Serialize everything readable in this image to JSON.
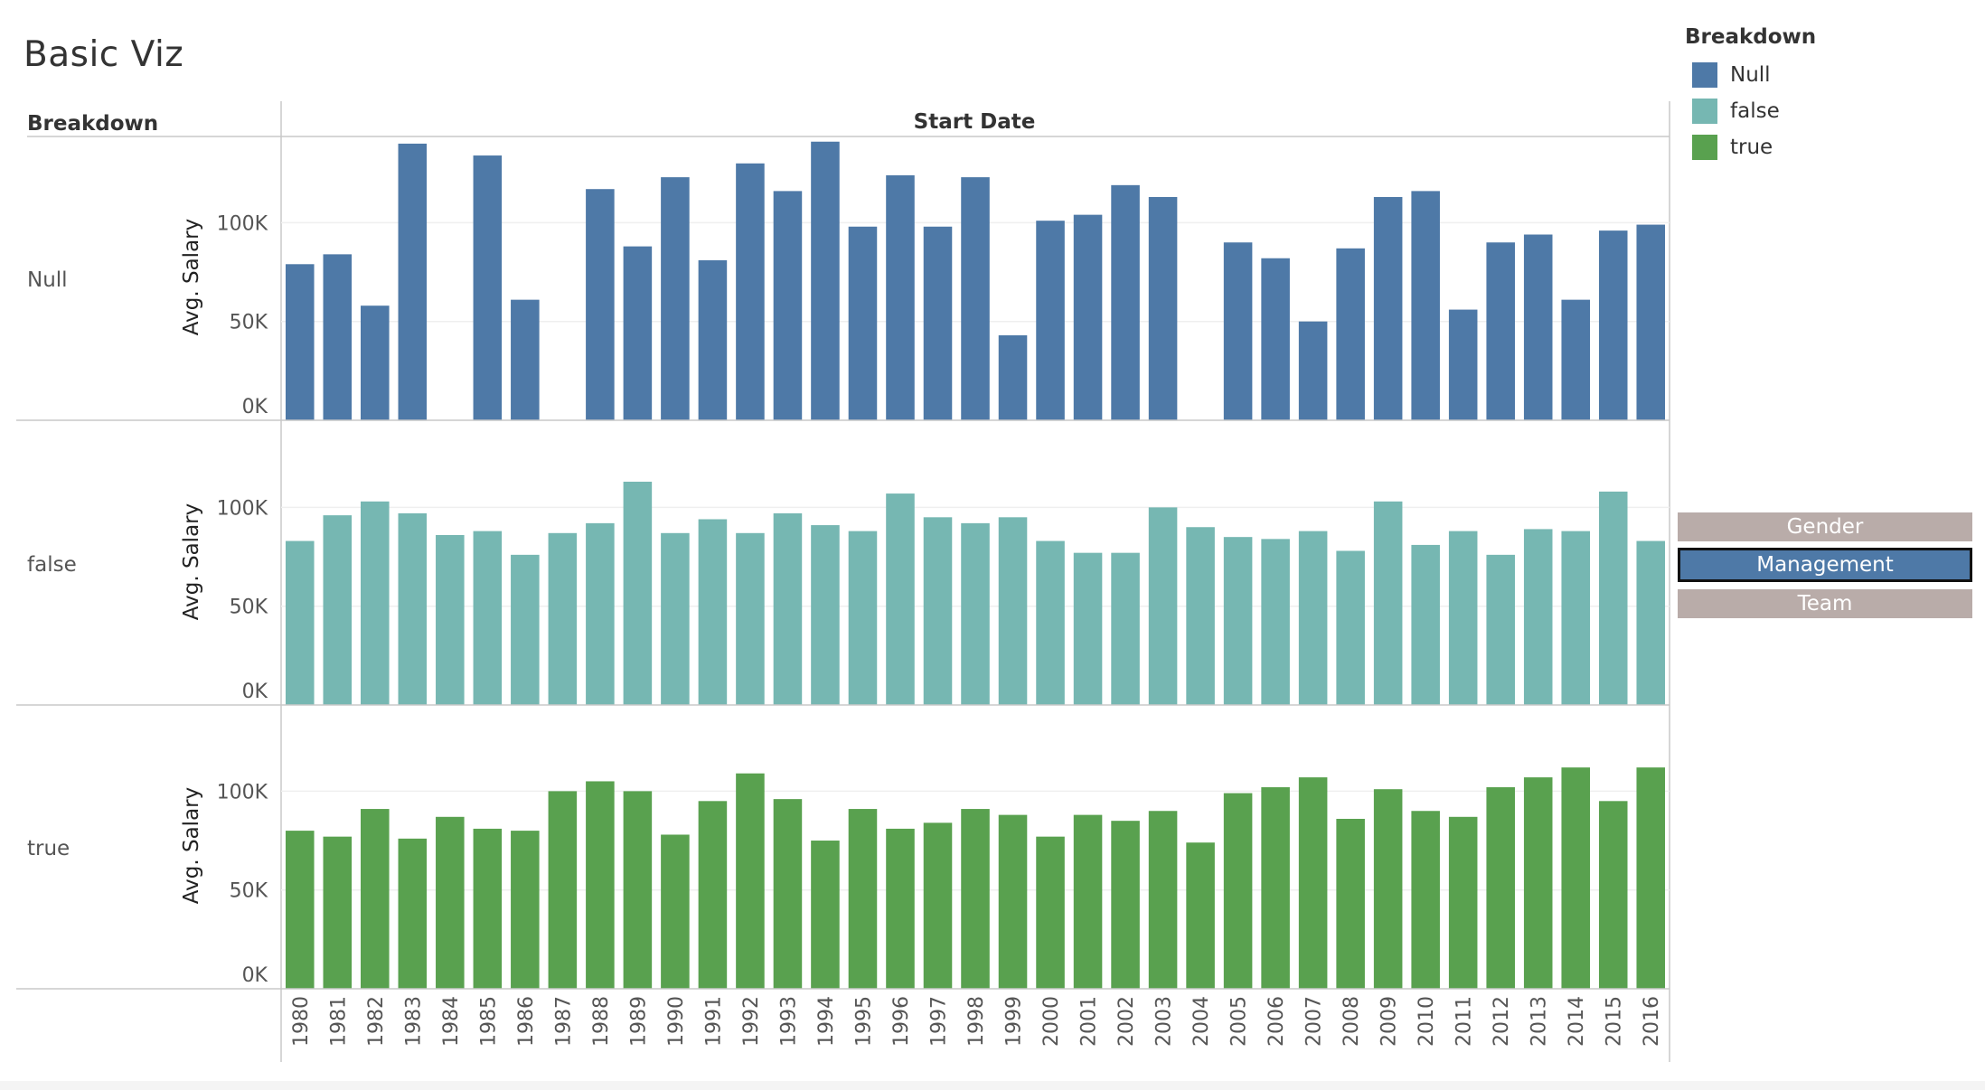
{
  "title": "Basic Viz",
  "legend": {
    "title": "Breakdown",
    "items": [
      {
        "label": "Null",
        "color": "#4e79a7"
      },
      {
        "label": "false",
        "color": "#76b7b2"
      },
      {
        "label": "true",
        "color": "#59a14f"
      }
    ]
  },
  "toggles": [
    {
      "label": "Gender",
      "active": false
    },
    {
      "label": "Management",
      "active": true
    },
    {
      "label": "Team",
      "active": false
    }
  ],
  "headers": {
    "row": "Breakdown",
    "column": "Start Date"
  },
  "chart_data": {
    "type": "bar",
    "xlabel": "Start Date",
    "ylabel": "Avg. Salary",
    "ylim": [
      0,
      145000
    ],
    "yticks": [
      0,
      50000,
      100000
    ],
    "ytick_labels": [
      "0K",
      "50K",
      "100K"
    ],
    "categories": [
      "1980",
      "1981",
      "1982",
      "1983",
      "1984",
      "1985",
      "1986",
      "1987",
      "1988",
      "1989",
      "1990",
      "1991",
      "1992",
      "1993",
      "1994",
      "1995",
      "1996",
      "1997",
      "1998",
      "1999",
      "2000",
      "2001",
      "2002",
      "2003",
      "2004",
      "2005",
      "2006",
      "2007",
      "2008",
      "2009",
      "2010",
      "2011",
      "2012",
      "2013",
      "2014",
      "2015",
      "2016"
    ],
    "series": [
      {
        "name": "Null",
        "color": "#4e79a7",
        "values": [
          79000,
          84000,
          58000,
          140000,
          null,
          134000,
          61000,
          null,
          117000,
          88000,
          123000,
          81000,
          130000,
          116000,
          141000,
          98000,
          124000,
          98000,
          123000,
          43000,
          101000,
          104000,
          119000,
          113000,
          null,
          90000,
          82000,
          50000,
          87000,
          113000,
          116000,
          56000,
          90000,
          94000,
          61000,
          96000,
          99000
        ]
      },
      {
        "name": "false",
        "color": "#76b7b2",
        "values": [
          83000,
          96000,
          103000,
          97000,
          86000,
          88000,
          76000,
          87000,
          92000,
          113000,
          87000,
          94000,
          87000,
          97000,
          91000,
          88000,
          107000,
          95000,
          92000,
          95000,
          83000,
          77000,
          77000,
          100000,
          90000,
          85000,
          84000,
          88000,
          78000,
          103000,
          81000,
          88000,
          76000,
          89000,
          88000,
          108000,
          83000
        ]
      },
      {
        "name": "true",
        "color": "#59a14f",
        "values": [
          80000,
          77000,
          91000,
          76000,
          87000,
          81000,
          80000,
          100000,
          105000,
          100000,
          78000,
          95000,
          109000,
          96000,
          75000,
          91000,
          81000,
          84000,
          91000,
          88000,
          77000,
          88000,
          85000,
          90000,
          74000,
          99000,
          102000,
          107000,
          86000,
          101000,
          90000,
          87000,
          102000,
          107000,
          112000,
          95000,
          112000
        ]
      }
    ]
  }
}
